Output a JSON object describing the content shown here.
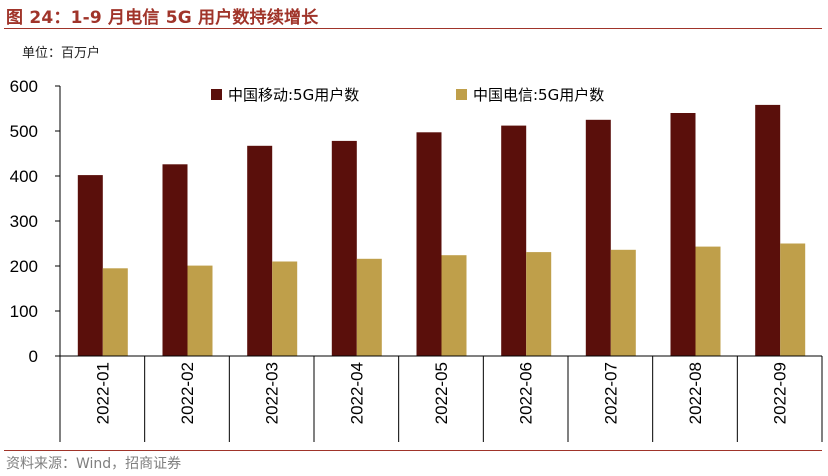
{
  "figure": {
    "title": "图 24：1-9 月电信 5G 用户数持续增长",
    "unit": "单位：百万户",
    "source": "资料来源：Wind，招商证券"
  },
  "chart_data": {
    "type": "bar",
    "title": "",
    "xlabel": "",
    "ylabel": "",
    "ylim": [
      0,
      600
    ],
    "yticks": [
      0,
      100,
      200,
      300,
      400,
      500,
      600
    ],
    "categories": [
      "2022-01",
      "2022-02",
      "2022-03",
      "2022-04",
      "2022-05",
      "2022-06",
      "2022-07",
      "2022-08",
      "2022-09"
    ],
    "series": [
      {
        "name": "中国移动:5G用户数",
        "color": "#5a0f0b",
        "values": [
          402,
          426,
          467,
          478,
          497,
          512,
          525,
          540,
          558
        ]
      },
      {
        "name": "中国电信:5G用户数",
        "color": "#bf9f4a",
        "values": [
          195,
          201,
          210,
          216,
          224,
          231,
          236,
          243,
          250
        ]
      }
    ],
    "grid": false,
    "legend": "top"
  }
}
